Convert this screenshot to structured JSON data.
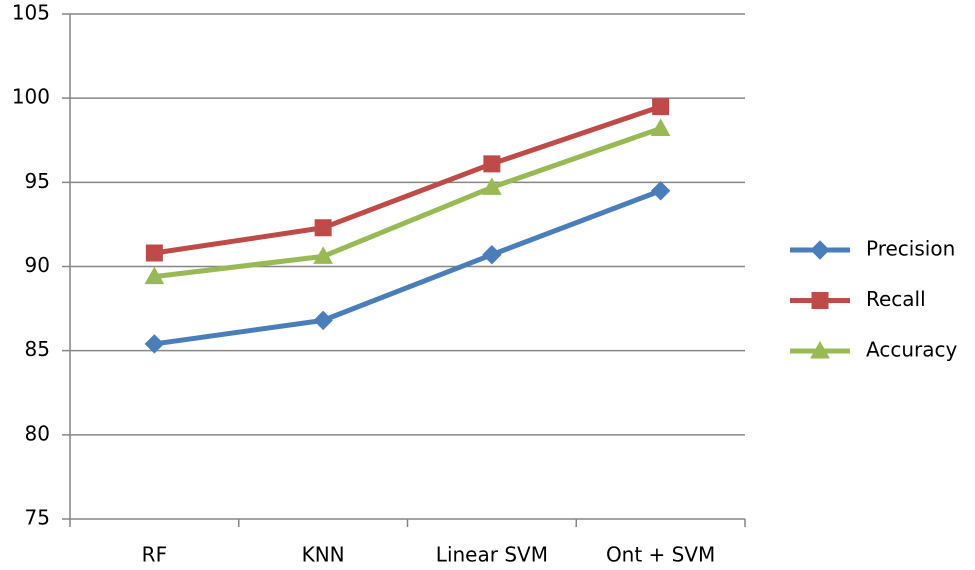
{
  "chart_data": {
    "type": "line",
    "categories": [
      "RF",
      "KNN",
      "Linear SVM",
      "Ont + SVM"
    ],
    "series": [
      {
        "name": "Precision",
        "color": "#4a7ebb",
        "marker": "diamond",
        "values": [
          85.4,
          86.8,
          90.7,
          94.5
        ]
      },
      {
        "name": "Recall",
        "color": "#be4b48",
        "marker": "square",
        "values": [
          90.8,
          92.3,
          96.1,
          99.5
        ]
      },
      {
        "name": "Accuracy",
        "color": "#98b954",
        "marker": "triangle",
        "values": [
          89.4,
          90.6,
          94.7,
          98.2
        ]
      }
    ],
    "ylim": [
      75,
      105
    ],
    "yticks": [
      75,
      80,
      85,
      90,
      95,
      100,
      105
    ],
    "grid": true,
    "legend": "right"
  }
}
